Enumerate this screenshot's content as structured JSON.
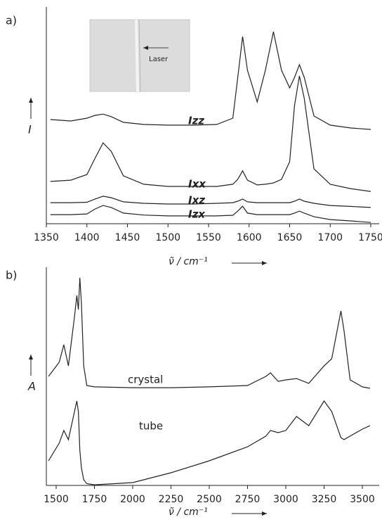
{
  "chart_data": [
    {
      "type": "line",
      "panel_label": "a)",
      "ylabel": "I",
      "xlabel": "ν̃ / cm⁻¹",
      "annotation": "Laser",
      "xlim": [
        1350,
        1750
      ],
      "xticks": [
        1350,
        1400,
        1450,
        1500,
        1550,
        1600,
        1650,
        1700,
        1750
      ],
      "ylim": [
        0,
        100
      ],
      "x": [
        1355,
        1380,
        1400,
        1410,
        1420,
        1430,
        1445,
        1470,
        1500,
        1530,
        1560,
        1580,
        1586,
        1592,
        1598,
        1610,
        1620,
        1630,
        1640,
        1650,
        1656,
        1662,
        1668,
        1680,
        1700,
        1725,
        1750
      ],
      "series": [
        {
          "name": "Izz",
          "color": "#222222",
          "values": [
            48.1,
            47.4,
            48.7,
            50,
            50.6,
            49.4,
            46.8,
            45.8,
            45.5,
            45.5,
            45.8,
            48.7,
            67.5,
            86.4,
            70.8,
            56.2,
            70.8,
            88.6,
            70.8,
            62.7,
            67.5,
            73.4,
            67.5,
            49.7,
            45.5,
            44.2,
            43.5
          ]
        },
        {
          "name": "Ixx",
          "color": "#222222",
          "values": [
            19.5,
            20.1,
            22.7,
            30.2,
            37.3,
            33.4,
            22.1,
            18.2,
            17.2,
            17.2,
            17.2,
            18.2,
            20.5,
            24.4,
            20.1,
            17.9,
            18.2,
            18.8,
            20.5,
            28.6,
            54.5,
            68.2,
            57.8,
            25.3,
            18.2,
            16.2,
            14.9
          ]
        },
        {
          "name": "Ixz",
          "color": "#222222",
          "values": [
            9.7,
            9.7,
            9.9,
            11.4,
            12.7,
            12,
            10.1,
            9.4,
            9.1,
            9.1,
            9.4,
            9.7,
            10.4,
            11.4,
            10.1,
            9.7,
            9.7,
            9.7,
            9.7,
            9.7,
            10.4,
            11.4,
            10.4,
            9.4,
            8.4,
            8,
            7.5
          ]
        },
        {
          "name": "Izx",
          "color": "#222222",
          "values": [
            4.2,
            4.2,
            4.5,
            6.8,
            8.4,
            7.5,
            4.9,
            4,
            3.6,
            3.6,
            3.6,
            3.9,
            5.8,
            8.1,
            4.9,
            4.2,
            4.2,
            4.2,
            4.2,
            4.2,
            4.9,
            5.8,
            4.9,
            3.2,
            1.9,
            1.3,
            0.6
          ]
        }
      ]
    },
    {
      "type": "line",
      "panel_label": "b)",
      "ylabel": "A",
      "xlabel": "ν̃ / cm⁻¹",
      "xlim": [
        1436,
        3610
      ],
      "xticks": [
        1500,
        1750,
        2000,
        2250,
        2500,
        2750,
        3000,
        3250,
        3500
      ],
      "ylim": [
        0,
        100
      ],
      "x": [
        1450,
        1520,
        1550,
        1580,
        1620,
        1635,
        1645,
        1655,
        1665,
        1680,
        1700,
        1750,
        2000,
        2250,
        2500,
        2750,
        2870,
        2900,
        2950,
        3000,
        3070,
        3150,
        3250,
        3300,
        3360,
        3380,
        3420,
        3500,
        3550
      ],
      "series": [
        {
          "name": "crystal",
          "color": "#222222",
          "values": [
            50,
            56.5,
            64.5,
            54.8,
            77.4,
            87.1,
            80.6,
            95.2,
            83.9,
            54.8,
            45.8,
            45.2,
            44.8,
            44.8,
            45.2,
            45.8,
            50,
            51.6,
            47.7,
            48.4,
            49,
            46.8,
            54.8,
            58.1,
            80,
            71,
            48.4,
            45.2,
            44.5
          ]
        },
        {
          "name": "tube",
          "color": "#222222",
          "values": [
            11.3,
            19.4,
            25.2,
            21,
            33.9,
            38.7,
            33.9,
            16.1,
            8.1,
            2.6,
            0.8,
            0.3,
            1.3,
            5.8,
            11.3,
            17.7,
            22.6,
            25.2,
            24.2,
            25.2,
            31.6,
            27.4,
            38.7,
            33.9,
            21.9,
            21,
            22.6,
            25.8,
            27.4
          ]
        }
      ]
    }
  ]
}
